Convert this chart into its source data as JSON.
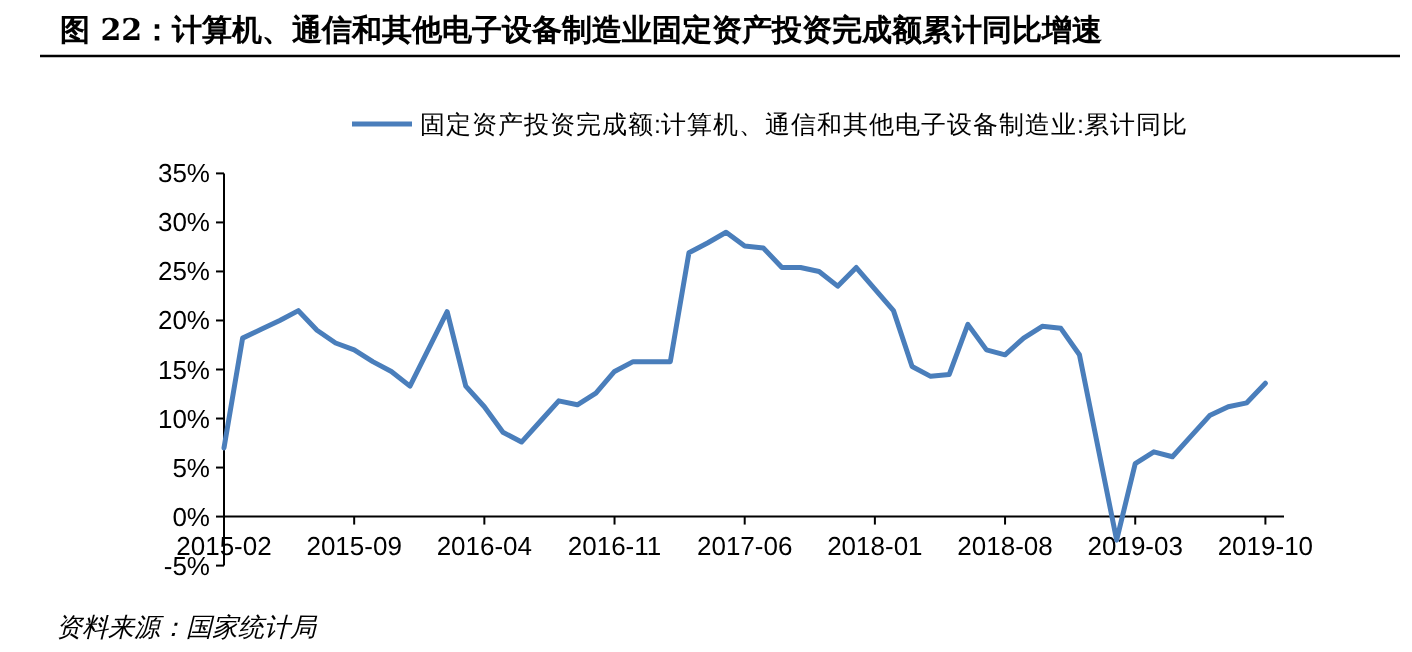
{
  "chart_data": {
    "type": "line",
    "title": "图 22：计算机、通信和其他电子设备制造业固定资产投资完成额累计同比增速",
    "x": [
      "2015-02",
      "2015-03",
      "2015-04",
      "2015-05",
      "2015-06",
      "2015-07",
      "2015-08",
      "2015-09",
      "2015-10",
      "2015-11",
      "2015-12",
      "2016-02",
      "2016-03",
      "2016-04",
      "2016-05",
      "2016-06",
      "2016-07",
      "2016-08",
      "2016-09",
      "2016-10",
      "2016-11",
      "2016-12",
      "2017-02",
      "2017-03",
      "2017-04",
      "2017-05",
      "2017-06",
      "2017-07",
      "2017-08",
      "2017-09",
      "2017-10",
      "2017-11",
      "2017-12",
      "2018-02",
      "2018-03",
      "2018-04",
      "2018-05",
      "2018-06",
      "2018-07",
      "2018-08",
      "2018-09",
      "2018-10",
      "2018-11",
      "2018-12",
      "2019-02",
      "2019-03",
      "2019-04",
      "2019-05",
      "2019-06",
      "2019-07",
      "2019-08",
      "2019-09",
      "2019-10"
    ],
    "series": [
      {
        "name": "固定资产投资完成额:计算机、通信和其他电子设备制造业:累计同比",
        "color": "#4a7ebb",
        "values": [
          7.0,
          18.2,
          19.1,
          20.0,
          21.0,
          19.0,
          17.7,
          17.0,
          15.8,
          14.8,
          13.3,
          20.9,
          13.3,
          11.2,
          8.6,
          7.6,
          9.7,
          11.8,
          11.4,
          12.6,
          14.8,
          15.8,
          15.8,
          26.9,
          27.9,
          29.0,
          27.6,
          27.4,
          25.4,
          25.4,
          25.0,
          23.5,
          25.4,
          21.0,
          15.3,
          14.3,
          14.5,
          19.6,
          17.0,
          16.5,
          18.2,
          19.4,
          19.2,
          16.5,
          -2.4,
          5.4,
          6.6,
          6.1,
          8.2,
          10.3,
          11.2,
          11.6,
          13.6
        ]
      }
    ],
    "xlim": [
      "2015-02",
      "2019-11"
    ],
    "xticks": [
      "2015-02",
      "2015-09",
      "2016-04",
      "2016-11",
      "2017-06",
      "2018-01",
      "2018-08",
      "2019-03",
      "2019-10"
    ],
    "ylim": [
      -5,
      35
    ],
    "yticks": [
      {
        "value": -5,
        "label": "-5%"
      },
      {
        "value": 0,
        "label": "0%"
      },
      {
        "value": 5,
        "label": "5%"
      },
      {
        "value": 10,
        "label": "10%"
      },
      {
        "value": 15,
        "label": "15%"
      },
      {
        "value": 20,
        "label": "20%"
      },
      {
        "value": 25,
        "label": "25%"
      },
      {
        "value": 30,
        "label": "30%"
      },
      {
        "value": 35,
        "label": "35%"
      }
    ],
    "legend": "top",
    "grid": false,
    "line_style": "solid",
    "annotations": [
      "资料来源：国家统计局"
    ]
  }
}
